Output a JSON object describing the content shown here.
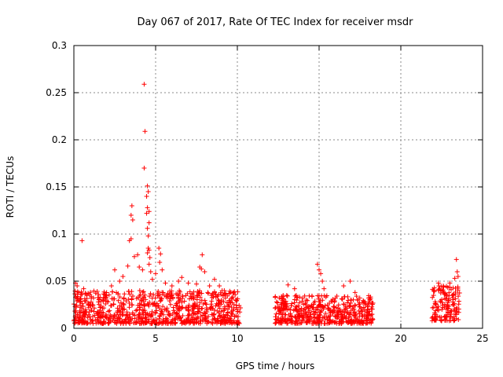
{
  "chart_data": {
    "type": "scatter",
    "title": "Day 067 of 2017, Rate Of TEC Index for receiver msdr",
    "xlabel": "GPS time / hours",
    "ylabel": "ROTI / TECUs",
    "xlim": [
      0,
      25
    ],
    "ylim": [
      0,
      0.3
    ],
    "grid": true,
    "marker": "+",
    "marker_color": "#ff0000",
    "x_ticks": [
      0,
      5,
      10,
      15,
      20,
      25
    ],
    "x_tick_labels": [
      "0",
      "5",
      "10",
      "15",
      "20",
      "25"
    ],
    "y_ticks": [
      0,
      0.05,
      0.1,
      0.15,
      0.2,
      0.25,
      0.3
    ],
    "y_tick_labels": [
      "0",
      "0.05",
      "0.1",
      "0.15",
      "0.2",
      "0.25",
      "0.3"
    ],
    "data_segments": [
      {
        "x_start": 0.0,
        "x_end": 10.2,
        "y_base_min": 0.005,
        "y_base_max": 0.04
      },
      {
        "x_start": 12.3,
        "x_end": 18.3,
        "y_base_min": 0.005,
        "y_base_max": 0.035
      },
      {
        "x_start": 21.9,
        "x_end": 23.6,
        "y_base_min": 0.008,
        "y_base_max": 0.045
      }
    ],
    "series": [
      {
        "name": "ROTI",
        "points": [
          [
            0.1,
            0.048
          ],
          [
            0.2,
            0.045
          ],
          [
            0.3,
            0.038
          ],
          [
            0.5,
            0.093
          ],
          [
            0.6,
            0.042
          ],
          [
            1.5,
            0.028
          ],
          [
            2.0,
            0.035
          ],
          [
            2.3,
            0.045
          ],
          [
            2.5,
            0.062
          ],
          [
            2.8,
            0.05
          ],
          [
            3.0,
            0.055
          ],
          [
            3.3,
            0.066
          ],
          [
            3.4,
            0.093
          ],
          [
            3.5,
            0.095
          ],
          [
            3.5,
            0.12
          ],
          [
            3.55,
            0.13
          ],
          [
            3.6,
            0.115
          ],
          [
            3.7,
            0.076
          ],
          [
            3.9,
            0.078
          ],
          [
            4.0,
            0.065
          ],
          [
            4.2,
            0.062
          ],
          [
            4.3,
            0.259
          ],
          [
            4.35,
            0.209
          ],
          [
            4.3,
            0.17
          ],
          [
            4.45,
            0.14
          ],
          [
            4.5,
            0.151
          ],
          [
            4.55,
            0.145
          ],
          [
            4.5,
            0.128
          ],
          [
            4.45,
            0.122
          ],
          [
            4.6,
            0.124
          ],
          [
            4.6,
            0.112
          ],
          [
            4.5,
            0.106
          ],
          [
            4.55,
            0.098
          ],
          [
            4.55,
            0.085
          ],
          [
            4.5,
            0.08
          ],
          [
            4.6,
            0.083
          ],
          [
            4.65,
            0.075
          ],
          [
            4.6,
            0.068
          ],
          [
            4.7,
            0.06
          ],
          [
            4.8,
            0.052
          ],
          [
            5.0,
            0.058
          ],
          [
            5.2,
            0.085
          ],
          [
            5.3,
            0.079
          ],
          [
            5.25,
            0.07
          ],
          [
            5.4,
            0.062
          ],
          [
            5.6,
            0.048
          ],
          [
            6.0,
            0.045
          ],
          [
            6.4,
            0.05
          ],
          [
            6.6,
            0.054
          ],
          [
            7.0,
            0.048
          ],
          [
            7.5,
            0.047
          ],
          [
            7.7,
            0.065
          ],
          [
            7.8,
            0.063
          ],
          [
            7.85,
            0.078
          ],
          [
            8.0,
            0.06
          ],
          [
            8.3,
            0.045
          ],
          [
            8.6,
            0.052
          ],
          [
            8.9,
            0.045
          ],
          [
            9.2,
            0.04
          ],
          [
            9.6,
            0.038
          ],
          [
            9.9,
            0.03
          ],
          [
            12.4,
            0.028
          ],
          [
            12.8,
            0.035
          ],
          [
            13.1,
            0.046
          ],
          [
            13.5,
            0.042
          ],
          [
            14.0,
            0.032
          ],
          [
            14.9,
            0.068
          ],
          [
            15.0,
            0.062
          ],
          [
            15.1,
            0.058
          ],
          [
            15.2,
            0.05
          ],
          [
            15.3,
            0.042
          ],
          [
            16.0,
            0.032
          ],
          [
            16.5,
            0.045
          ],
          [
            16.9,
            0.05
          ],
          [
            17.2,
            0.038
          ],
          [
            17.8,
            0.028
          ],
          [
            18.1,
            0.03
          ],
          [
            22.0,
            0.04
          ],
          [
            22.3,
            0.048
          ],
          [
            22.6,
            0.045
          ],
          [
            23.0,
            0.048
          ],
          [
            23.3,
            0.053
          ],
          [
            23.4,
            0.073
          ],
          [
            23.45,
            0.06
          ],
          [
            23.5,
            0.055
          ]
        ]
      }
    ]
  }
}
